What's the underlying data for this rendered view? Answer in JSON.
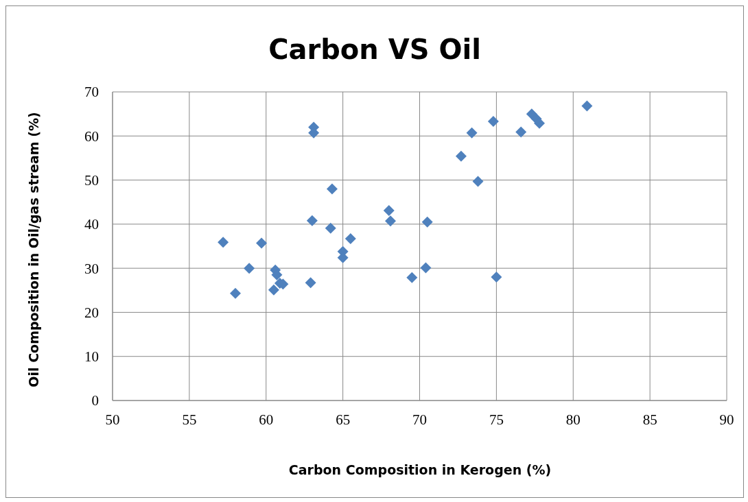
{
  "chart_data": {
    "type": "scatter",
    "title": "Carbon VS Oil",
    "xlabel": "Carbon Composition in Kerogen (%)",
    "ylabel": "Oil Composition in Oil/gas stream (%)",
    "x": [
      57.2,
      58.0,
      58.9,
      59.7,
      60.6,
      60.7,
      60.9,
      61.1,
      60.5,
      62.9,
      63.0,
      63.1,
      63.1,
      64.2,
      64.3,
      65.0,
      65.0,
      65.5,
      68.0,
      68.1,
      69.5,
      70.4,
      70.5,
      72.7,
      73.4,
      73.8,
      74.8,
      75.0,
      76.6,
      77.3,
      77.6,
      77.8,
      80.9
    ],
    "values": [
      35.9,
      24.3,
      30.0,
      35.7,
      29.6,
      28.5,
      26.6,
      26.4,
      25.1,
      26.7,
      40.8,
      62.0,
      60.7,
      39.1,
      48.0,
      33.8,
      32.4,
      36.7,
      43.1,
      40.7,
      27.9,
      30.1,
      40.5,
      55.4,
      60.7,
      49.7,
      63.3,
      28.0,
      60.9,
      65.0,
      63.9,
      62.9,
      66.8
    ],
    "color": "#4f81bd",
    "marker": "diamond",
    "xlim": [
      50,
      90
    ],
    "xticks": [
      50,
      55,
      60,
      65,
      70,
      75,
      80,
      85,
      90
    ],
    "ylim": [
      0,
      70
    ],
    "yticks": [
      0,
      10,
      20,
      30,
      40,
      50,
      60,
      70
    ],
    "grid": true,
    "legend": false
  }
}
